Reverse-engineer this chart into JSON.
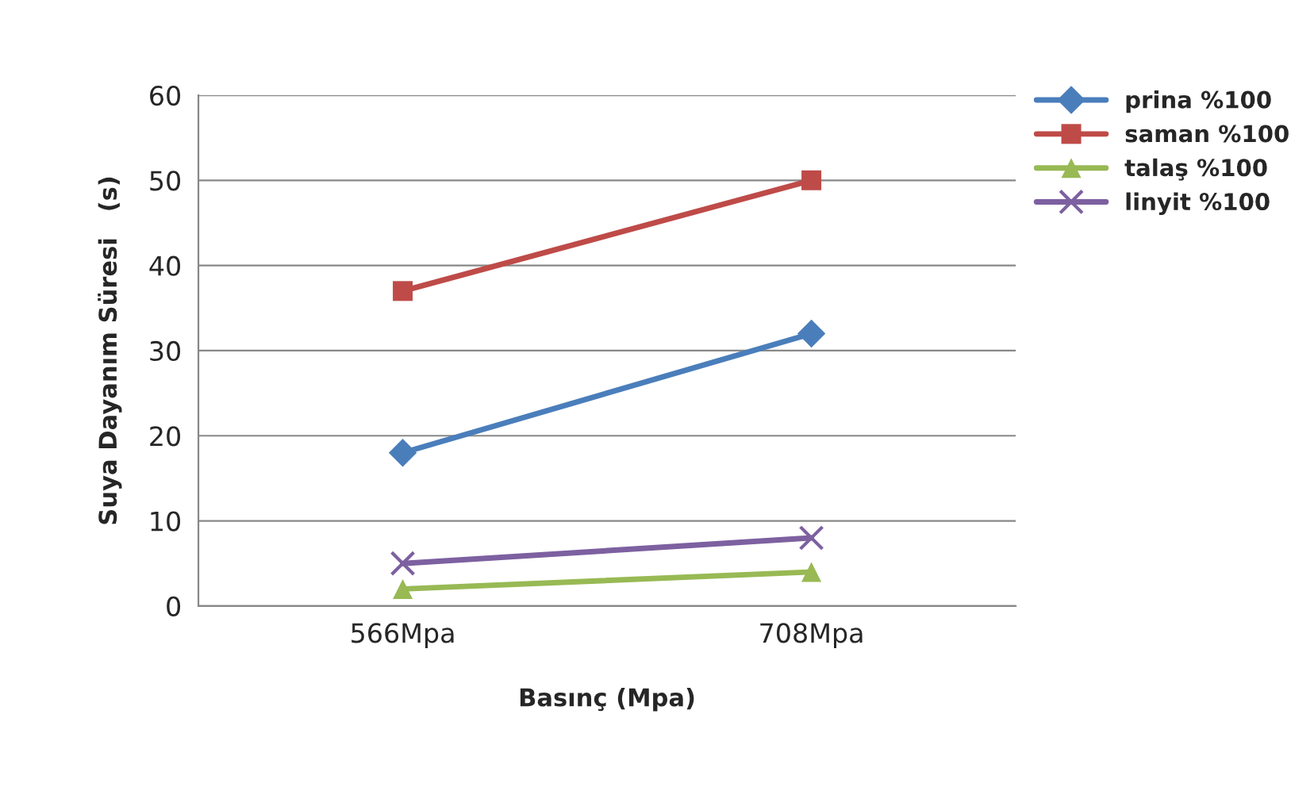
{
  "chart_data": {
    "type": "line",
    "xlabel": "Basınç (Mpa)",
    "ylabel": "Suya Dayanım Süresi   (s)",
    "categories": [
      "566Mpa",
      "708Mpa"
    ],
    "series": [
      {
        "name": "prina %100",
        "color": "#4a7ebb",
        "marker": "diamond",
        "values": [
          18,
          32
        ]
      },
      {
        "name": "saman %100",
        "color": "#be4b48",
        "marker": "square",
        "values": [
          37,
          50
        ]
      },
      {
        "name": "talaş %100",
        "color": "#98b954",
        "marker": "triangle",
        "values": [
          2,
          4
        ]
      },
      {
        "name": "linyit %100",
        "color": "#7d60a0",
        "marker": "cross",
        "values": [
          5,
          8
        ]
      }
    ],
    "ylim": [
      0,
      60
    ],
    "yticks": [
      0,
      10,
      20,
      30,
      40,
      50,
      60
    ],
    "grid": "y",
    "legend": "top right",
    "line_style": "solid"
  }
}
